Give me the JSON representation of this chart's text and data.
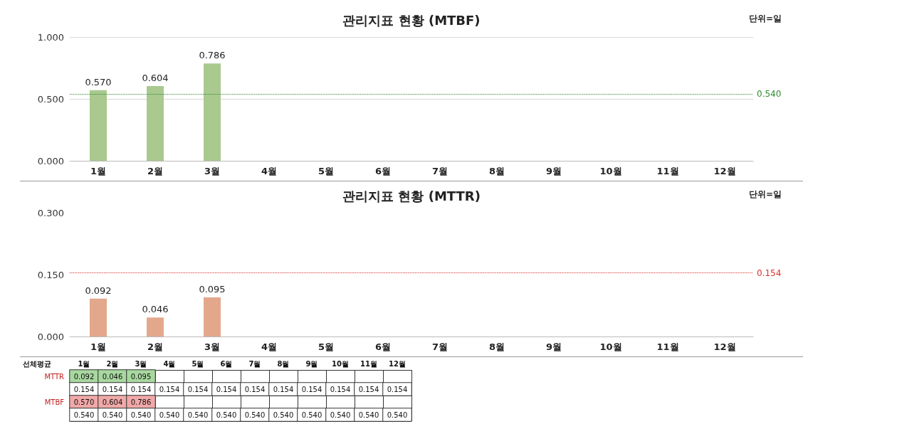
{
  "chart_data": [
    {
      "type": "bar",
      "title": "관리지표 현황 (MTBF)",
      "annotations": [
        "단위=일"
      ],
      "categories": [
        "1월",
        "2월",
        "3월",
        "4월",
        "5월",
        "6월",
        "7월",
        "8월",
        "9월",
        "10월",
        "11월",
        "12월"
      ],
      "values": [
        0.57,
        0.604,
        0.786,
        null,
        null,
        null,
        null,
        null,
        null,
        null,
        null,
        null
      ],
      "color": "#a9c98f",
      "value_labels": [
        "0.570",
        "0.604",
        "0.786",
        null,
        null,
        null,
        null,
        null,
        null,
        null,
        null,
        null
      ],
      "ylim": [
        0,
        1
      ],
      "yticks": [
        {
          "value": 0,
          "label": "0.000"
        },
        {
          "value": 0.5,
          "label": "0.500"
        },
        {
          "value": 1,
          "label": "1.000"
        }
      ],
      "grid": "y",
      "ref_lines": [
        {
          "axis": "y",
          "value": 0.54,
          "label": "0.540",
          "color": "#2e8b2e",
          "line_style": "dotted"
        }
      ]
    },
    {
      "type": "bar",
      "title": "관리지표 현황 (MTTR)",
      "annotations": [
        "단위=일"
      ],
      "categories": [
        "1월",
        "2월",
        "3월",
        "4월",
        "5월",
        "6월",
        "7월",
        "8월",
        "9월",
        "10월",
        "11월",
        "12월"
      ],
      "values": [
        0.092,
        0.046,
        0.095,
        null,
        null,
        null,
        null,
        null,
        null,
        null,
        null,
        null
      ],
      "color": "#e3a88c",
      "value_labels": [
        "0.092",
        "0.046",
        "0.095",
        null,
        null,
        null,
        null,
        null,
        null,
        null,
        null,
        null
      ],
      "ylim": [
        0,
        0.3
      ],
      "yticks": [
        {
          "value": 0,
          "label": "0.000"
        },
        {
          "value": 0.15,
          "label": "0.150"
        },
        {
          "value": 0.3,
          "label": "0.300"
        }
      ],
      "ref_lines": [
        {
          "axis": "y",
          "value": 0.154,
          "label": "0.154",
          "color": "#d9302c",
          "line_style": "dotted"
        }
      ]
    },
    {
      "type": "heatmap",
      "annotations": [
        "선체평균"
      ],
      "categories": [
        "1월",
        "2월",
        "3월",
        "4월",
        "5월",
        "6월",
        "7월",
        "8월",
        "9월",
        "10월",
        "11월",
        "12월"
      ],
      "y_categories": [
        "MTTR",
        null,
        "MTBF",
        null
      ],
      "colors": [
        "#a8d8a0",
        "#ffffff",
        "#f0a8a8",
        "#ffffff"
      ],
      "cells": [
        [
          0.092,
          0.046,
          0.095,
          null,
          null,
          null,
          null,
          null,
          null,
          null,
          null,
          null
        ],
        [
          0.154,
          0.154,
          0.154,
          0.154,
          0.154,
          0.154,
          0.154,
          0.154,
          0.154,
          0.154,
          0.154,
          0.154
        ],
        [
          0.57,
          0.604,
          0.786,
          null,
          null,
          null,
          null,
          null,
          null,
          null,
          null,
          null
        ],
        [
          0.54,
          0.54,
          0.54,
          0.54,
          0.54,
          0.54,
          0.54,
          0.54,
          0.54,
          0.54,
          0.54,
          0.54
        ]
      ],
      "cell_labels": [
        [
          "0.092",
          "0.046",
          "0.095",
          null,
          null,
          null,
          null,
          null,
          null,
          null,
          null,
          null
        ],
        [
          "0.154",
          "0.154",
          "0.154",
          "0.154",
          "0.154",
          "0.154",
          "0.154",
          "0.154",
          "0.154",
          "0.154",
          "0.154",
          "0.154"
        ],
        [
          "0.570",
          "0.604",
          "0.786",
          null,
          null,
          null,
          null,
          null,
          null,
          null,
          null,
          null
        ],
        [
          "0.540",
          "0.540",
          "0.540",
          "0.540",
          "0.540",
          "0.540",
          "0.540",
          "0.540",
          "0.540",
          "0.540",
          "0.540",
          "0.540"
        ]
      ]
    }
  ]
}
